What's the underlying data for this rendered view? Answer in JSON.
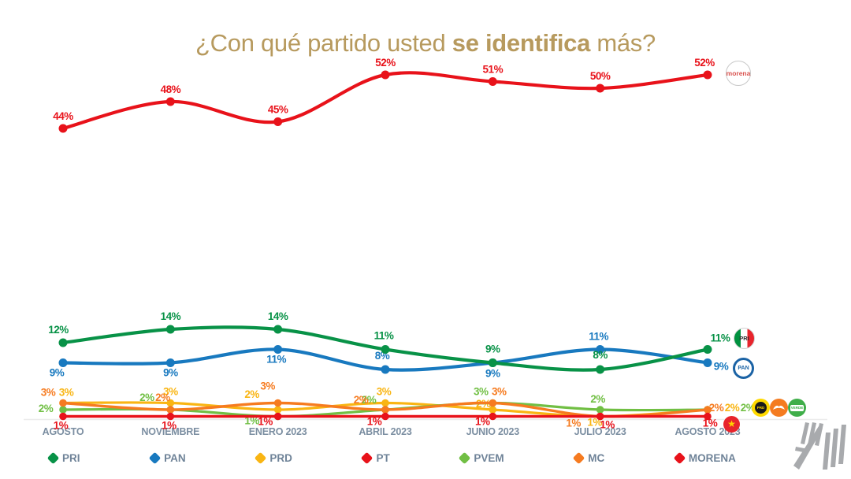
{
  "header": {
    "title_prefix": "¿Con qué partido usted ",
    "title_bold": "se identifica",
    "title_suffix": " más?",
    "title_color": "#b79a5e"
  },
  "chart_data": {
    "type": "line",
    "title": "¿Con qué partido usted se identifica más?",
    "unit": "%",
    "categories": [
      "AGOSTO",
      "NOVIEMBRE",
      "ENERO 2023",
      "ABRIL 2023",
      "JUNIO 2023",
      "JULIO 2023",
      "AGOSTO 2023"
    ],
    "series": [
      {
        "name": "PRI",
        "color": "#089247",
        "values": [
          12,
          14,
          14,
          11,
          9,
          8,
          11
        ]
      },
      {
        "name": "PAN",
        "color": "#1879bf",
        "values": [
          9,
          9,
          11,
          8,
          9,
          11,
          9
        ]
      },
      {
        "name": "PRD",
        "color": "#f9b513",
        "values": [
          3,
          3,
          2,
          3,
          2,
          1,
          2
        ]
      },
      {
        "name": "PT",
        "color": "#e8121a",
        "values": [
          1,
          1,
          1,
          1,
          1,
          1,
          1
        ]
      },
      {
        "name": "PVEM",
        "color": "#71bf44",
        "values": [
          2,
          2,
          1,
          2,
          3,
          2,
          2
        ]
      },
      {
        "name": "MC",
        "color": "#f67b20",
        "values": [
          3,
          2,
          3,
          2,
          3,
          1,
          2
        ]
      },
      {
        "name": "MORENA",
        "color": "#e8121a",
        "values": [
          44,
          48,
          45,
          52,
          51,
          50,
          52
        ]
      }
    ],
    "ylim": [
      0,
      56
    ],
    "grid": false,
    "legend_position": "bottom",
    "axis_label_color": "#7b8ea1",
    "legend_text_color": "#6f8398"
  },
  "icons": {
    "morena_label": "morena",
    "pri_label": "PRI",
    "pan_label": "PAN",
    "prd_label": "PRD",
    "pvem_label": "VERDE",
    "pt_star": "★"
  }
}
